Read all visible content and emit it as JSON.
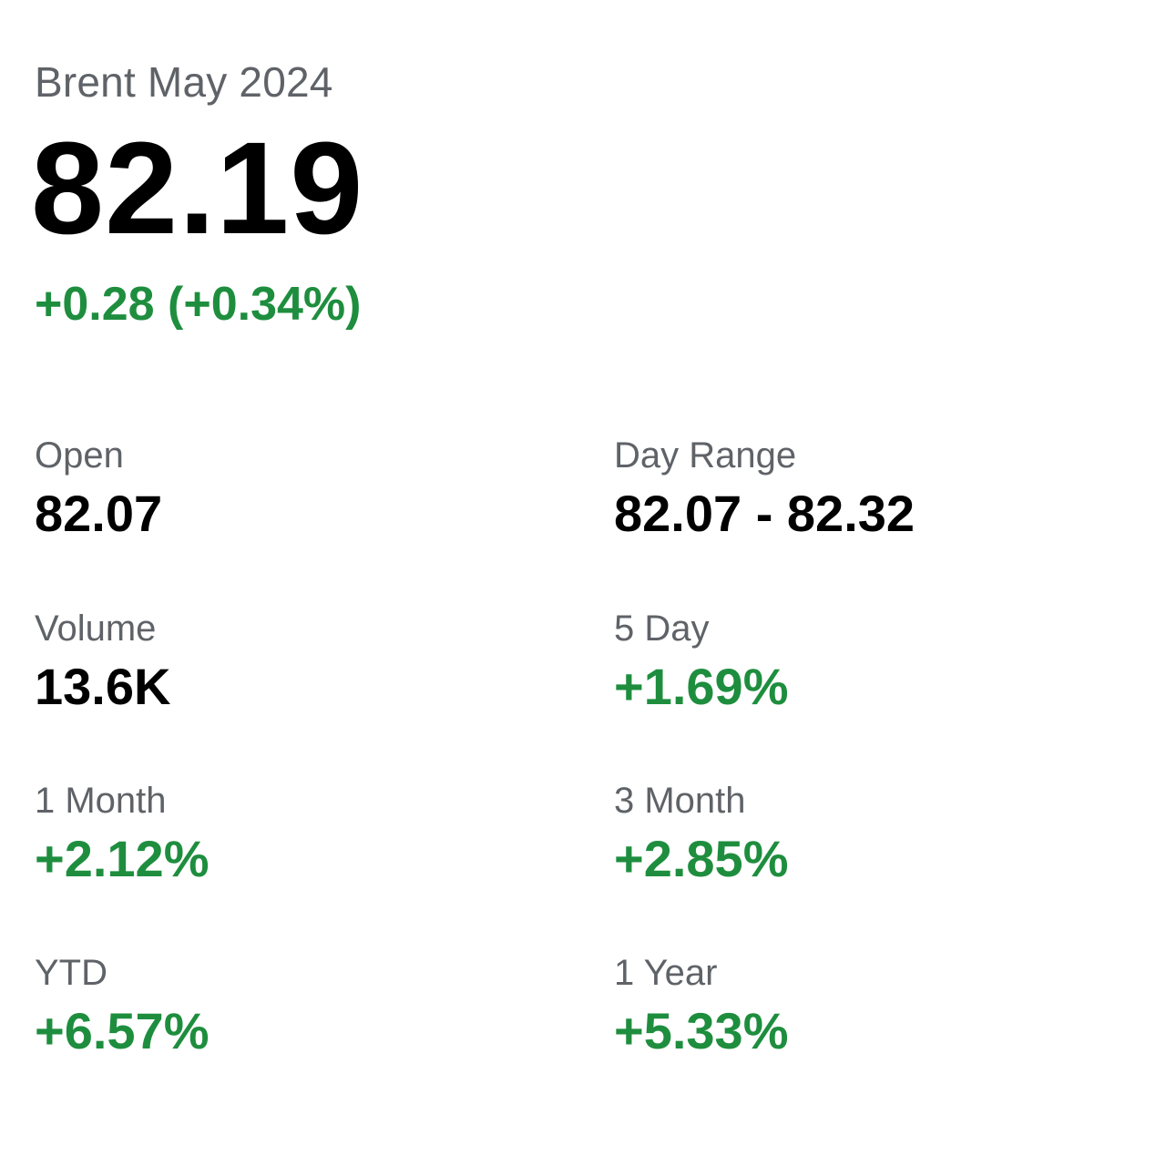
{
  "quote": {
    "instrument": "Brent May 2024",
    "price": "82.19",
    "change": "+0.28 (+0.34%)"
  },
  "stats": {
    "open": {
      "label": "Open",
      "value": "82.07"
    },
    "day_range": {
      "label": "Day Range",
      "value": "82.07 - 82.32"
    },
    "volume": {
      "label": "Volume",
      "value": "13.6K"
    },
    "five_day": {
      "label": "5 Day",
      "value": "+1.69%"
    },
    "one_month": {
      "label": "1 Month",
      "value": "+2.12%"
    },
    "three_month": {
      "label": "3 Month",
      "value": "+2.85%"
    },
    "ytd": {
      "label": "YTD",
      "value": "+6.57%"
    },
    "one_year": {
      "label": "1 Year",
      "value": "+5.33%"
    }
  },
  "colors": {
    "positive": "#1e8e3e",
    "label": "#5f6368",
    "value": "#000000",
    "background": "#ffffff"
  }
}
